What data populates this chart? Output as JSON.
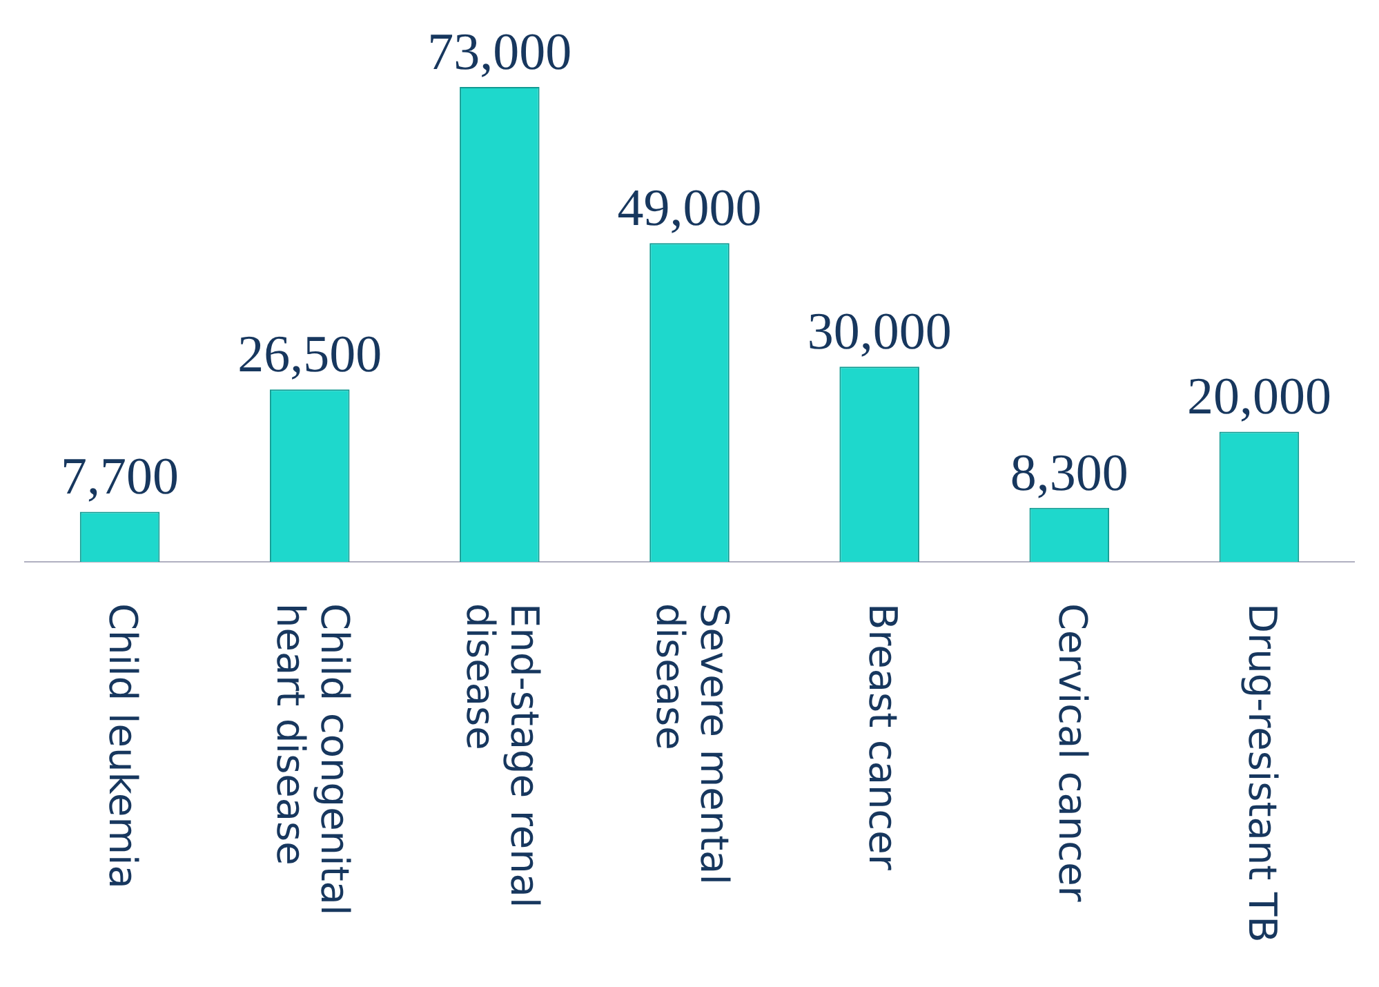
{
  "chart_data": {
    "type": "bar",
    "categories": [
      "Child leukemia",
      "Child congenital heart disease",
      "End-stage renal disease",
      "Severe mental disease",
      "Breast cancer",
      "Cervical cancer",
      "Drug-resistant TB"
    ],
    "values": [
      7700,
      26500,
      73000,
      49000,
      30000,
      8300,
      20000
    ],
    "value_labels": [
      "7,700",
      "26,500",
      "73,000",
      "49,000",
      "30,000",
      "8,300",
      "20,000"
    ],
    "color": "#1ed8cc",
    "grid": false,
    "legend": false
  }
}
